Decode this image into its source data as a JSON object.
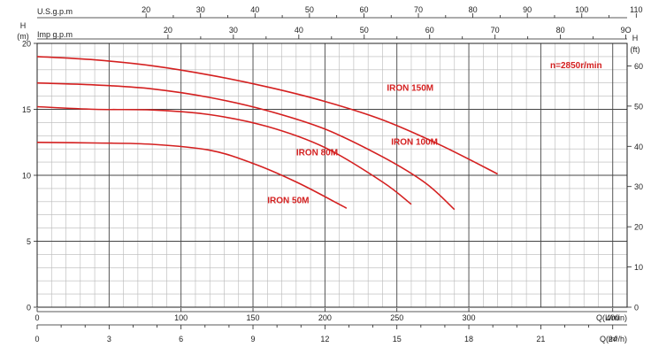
{
  "chart_data": {
    "type": "line",
    "top_axes": [
      {
        "label": "U.S.g.p.m",
        "ticks": [
          "20",
          "30",
          "40",
          "50",
          "60",
          "70",
          "80",
          "90",
          "100",
          "110"
        ]
      },
      {
        "label": "Imp g.p.m",
        "ticks": [
          "20",
          "30",
          "40",
          "50",
          "60",
          "70",
          "80",
          "9O"
        ]
      }
    ],
    "left_axis": {
      "unit": "H",
      "label": "(m)",
      "ticks": [
        "20",
        "15",
        "10",
        "5",
        "0"
      ],
      "ylim": [
        0,
        20
      ]
    },
    "right_axis": {
      "unit": "H",
      "label": "(ft)",
      "ticks": [
        "60",
        "50",
        "40",
        "30",
        "20",
        "10",
        "0"
      ],
      "ylim": [
        0,
        65.6
      ]
    },
    "bottom_axes": [
      {
        "label": "Q(L/min)",
        "ticks": [
          0,
          100,
          150,
          200,
          250,
          300,
          400
        ],
        "xlim": [
          0,
          410
        ]
      },
      {
        "label": "Q(m³/h)",
        "ticks": [
          0,
          3,
          6,
          9,
          12,
          15,
          18,
          21,
          24
        ],
        "xlim": [
          0,
          24.6
        ]
      }
    ],
    "annotation": "n=2850r/min",
    "series": [
      {
        "name": "IRON 150M",
        "x": [
          0,
          40,
          80,
          120,
          160,
          200,
          240,
          280,
          320
        ],
        "y": [
          19.0,
          18.75,
          18.3,
          17.6,
          16.7,
          15.6,
          14.2,
          12.3,
          10.1
        ]
      },
      {
        "name": "IRON 100M",
        "x": [
          0,
          40,
          80,
          120,
          160,
          200,
          240,
          270,
          290
        ],
        "y": [
          17.0,
          16.85,
          16.55,
          15.9,
          14.9,
          13.5,
          11.4,
          9.4,
          7.4
        ]
      },
      {
        "name": "IRON 80M",
        "x": [
          0,
          40,
          80,
          120,
          160,
          200,
          240,
          260
        ],
        "y": [
          15.2,
          15.0,
          14.95,
          14.6,
          13.7,
          12.1,
          9.5,
          7.8
        ]
      },
      {
        "name": "IRON 50M",
        "x": [
          0,
          40,
          80,
          120,
          150,
          180,
          210,
          215
        ],
        "y": [
          12.5,
          12.45,
          12.35,
          11.9,
          10.9,
          9.5,
          7.8,
          7.5
        ]
      }
    ]
  }
}
